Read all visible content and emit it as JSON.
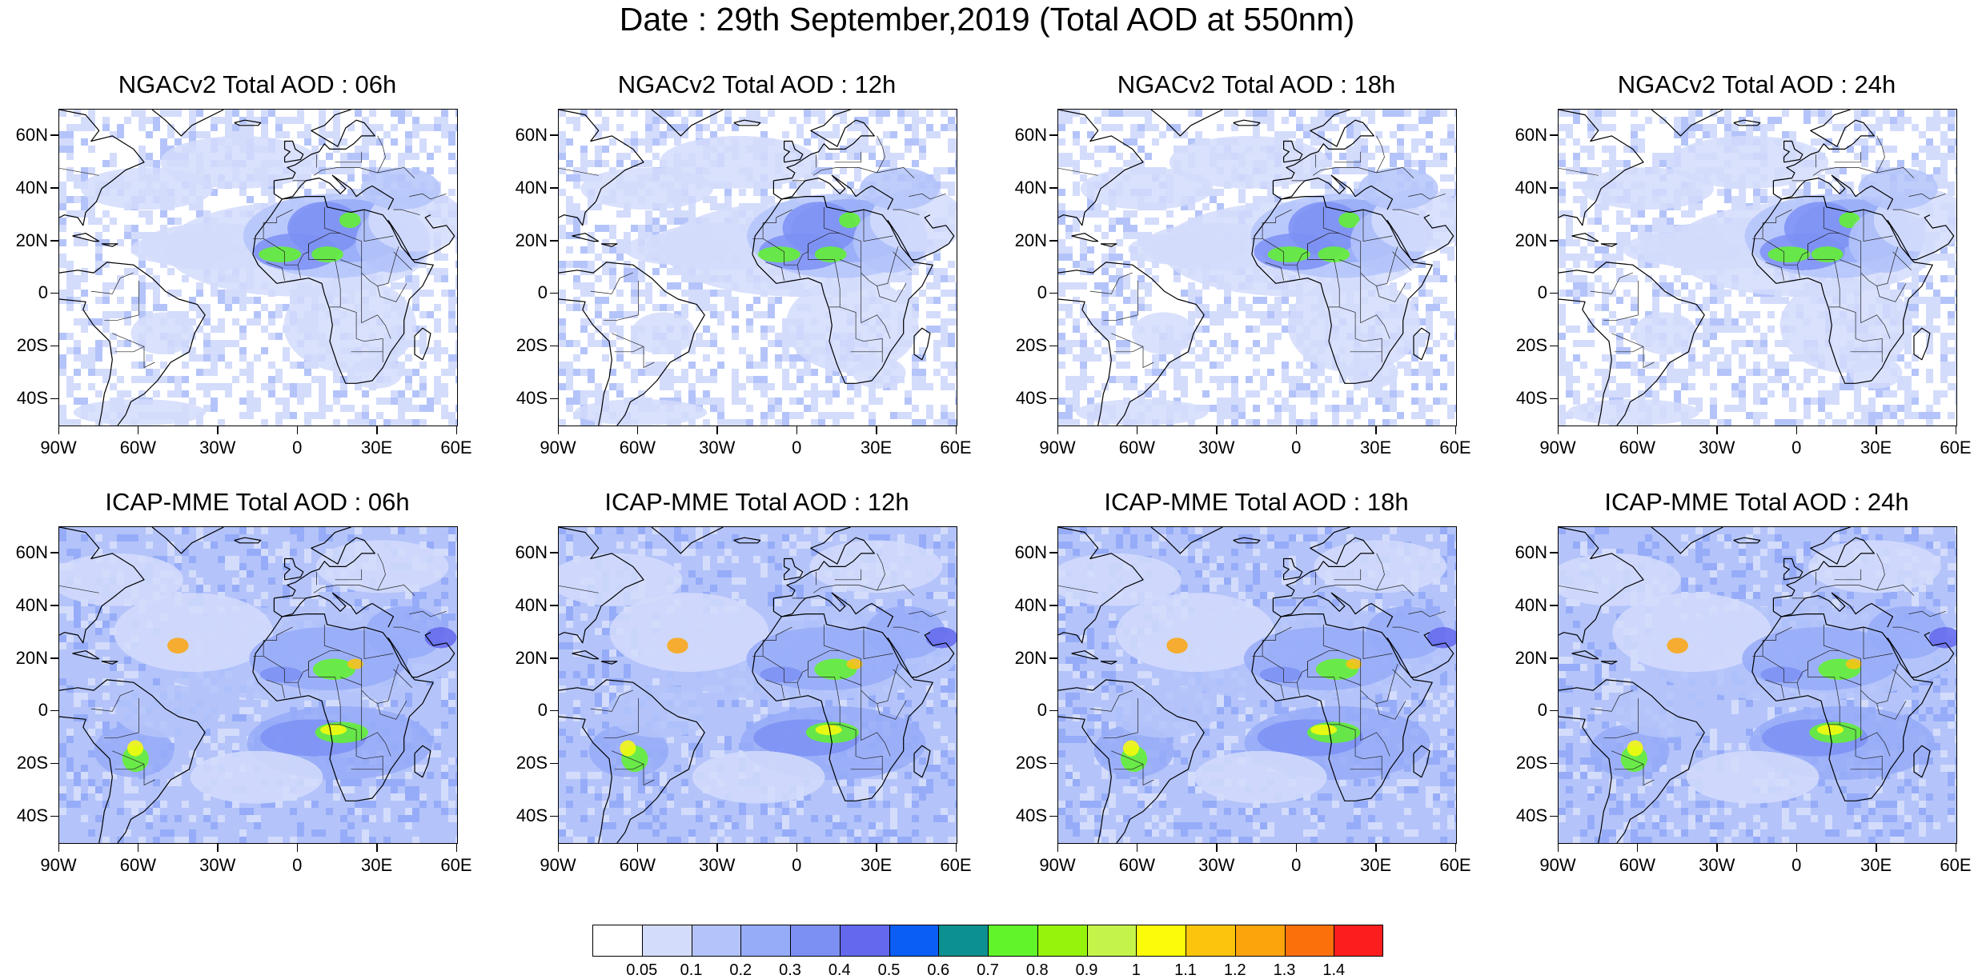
{
  "title": "Date : 29th September,2019 (Total AOD at 550nm)",
  "lat_labels": [
    "60N",
    "40N",
    "20N",
    "0",
    "20S",
    "40S"
  ],
  "lon_labels": [
    "90W",
    "60W",
    "30W",
    "0",
    "30E",
    "60E"
  ],
  "panels": [
    {
      "title": "NGACv2 Total AOD : 06h",
      "model": "NGACv2",
      "lead": "06h"
    },
    {
      "title": "NGACv2 Total AOD : 12h",
      "model": "NGACv2",
      "lead": "12h"
    },
    {
      "title": "NGACv2 Total AOD : 18h",
      "model": "NGACv2",
      "lead": "18h"
    },
    {
      "title": "NGACv2 Total AOD : 24h",
      "model": "NGACv2",
      "lead": "24h"
    },
    {
      "title": "ICAP-MME Total AOD : 06h",
      "model": "ICAP-MME",
      "lead": "06h"
    },
    {
      "title": "ICAP-MME Total AOD : 12h",
      "model": "ICAP-MME",
      "lead": "12h"
    },
    {
      "title": "ICAP-MME Total AOD : 18h",
      "model": "ICAP-MME",
      "lead": "18h"
    },
    {
      "title": "ICAP-MME Total AOD : 24h",
      "model": "ICAP-MME",
      "lead": "24h"
    }
  ],
  "colorbar": {
    "levels": [
      "0.05",
      "0.1",
      "0.2",
      "0.3",
      "0.4",
      "0.5",
      "0.6",
      "0.7",
      "0.8",
      "0.9",
      "1",
      "1.1",
      "1.2",
      "1.3",
      "1.4"
    ],
    "colors": [
      "#ffffff",
      "#d4dcfc",
      "#b4c4fa",
      "#96acf8",
      "#7c90f4",
      "#6368ec",
      "#0a5ef6",
      "#0c9090",
      "#62f42a",
      "#96f40c",
      "#c4f44a",
      "#fcfc08",
      "#fcc40c",
      "#fca40c",
      "#fc700c",
      "#fc1e1e"
    ]
  }
}
